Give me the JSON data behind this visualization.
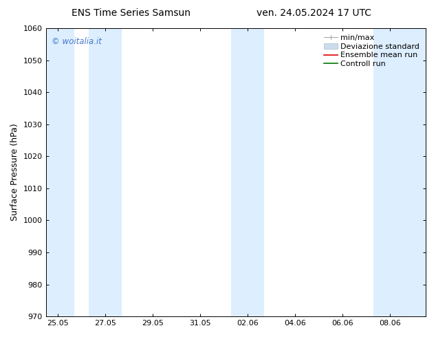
{
  "title_left": "ENS Time Series Samsun",
  "title_right": "ven. 24.05.2024 17 UTC",
  "ylabel": "Surface Pressure (hPa)",
  "ylim": [
    970,
    1060
  ],
  "yticks": [
    970,
    980,
    990,
    1000,
    1010,
    1020,
    1030,
    1040,
    1050,
    1060
  ],
  "xtick_labels": [
    "25.05",
    "27.05",
    "29.05",
    "31.05",
    "02.06",
    "04.06",
    "06.06",
    "08.06"
  ],
  "xtick_positions": [
    0,
    2,
    4,
    6,
    8,
    10,
    12,
    14
  ],
  "x_min": -0.5,
  "x_max": 15.5,
  "shaded_bands": [
    {
      "x_start": -0.5,
      "x_end": 0.7
    },
    {
      "x_start": 1.3,
      "x_end": 2.7
    },
    {
      "x_start": 7.3,
      "x_end": 8.7
    },
    {
      "x_start": 13.3,
      "x_end": 15.5
    }
  ],
  "shade_color": "#ddeeff",
  "background_color": "#ffffff",
  "watermark_text": "© woitalia.it",
  "watermark_color": "#4477cc",
  "title_fontsize": 10,
  "tick_fontsize": 8,
  "ylabel_fontsize": 9,
  "legend_fontsize": 8
}
